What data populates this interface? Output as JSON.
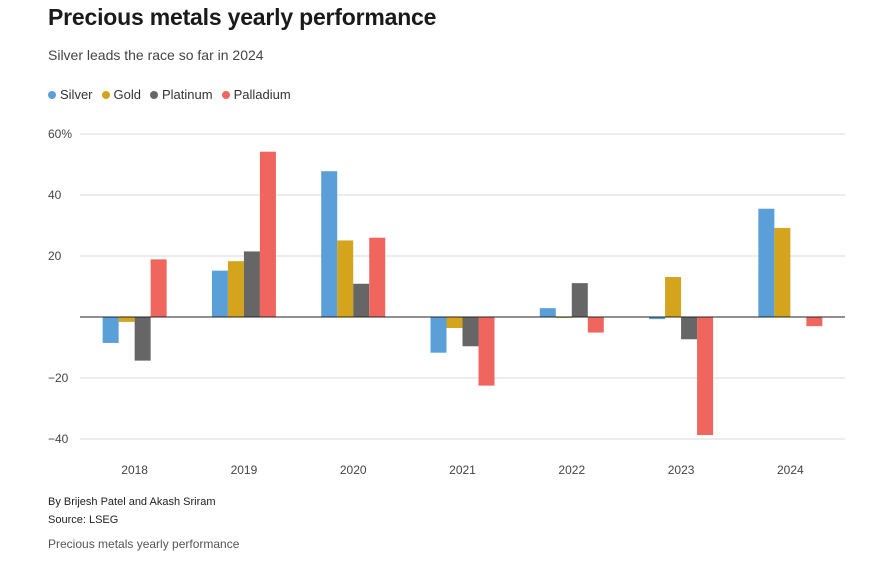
{
  "header": {
    "title": "Precious metals yearly performance",
    "subtitle": "Silver leads the race so far in 2024"
  },
  "colors": {
    "silver": "#5b9fd8",
    "gold": "#d4a41c",
    "platinum": "#666666",
    "palladium": "#f0665f",
    "grid": "#d8d8d8",
    "zero_line": "#222222"
  },
  "chart_data": {
    "type": "bar",
    "title": "Precious metals yearly performance",
    "subtitle": "Silver leads the race so far in 2024",
    "xlabel": "",
    "ylabel": "",
    "ylim": [
      -45,
      60
    ],
    "yticks": [
      60,
      40,
      20,
      0,
      -20,
      -40
    ],
    "ytick_labels": [
      "60%",
      "40",
      "20",
      "",
      "−20",
      "−40"
    ],
    "grid": true,
    "legend_position": "top-left",
    "categories": [
      "2018",
      "2019",
      "2020",
      "2021",
      "2022",
      "2023",
      "2024"
    ],
    "series": [
      {
        "name": "Silver",
        "color": "#5b9fd8",
        "values": [
          -8.5,
          15.2,
          47.8,
          -11.7,
          2.9,
          -0.7,
          35.5
        ]
      },
      {
        "name": "Gold",
        "color": "#d4a41c",
        "values": [
          -1.6,
          18.3,
          25.1,
          -3.6,
          -0.3,
          13.1,
          29.2
        ]
      },
      {
        "name": "Platinum",
        "color": "#666666",
        "values": [
          -14.3,
          21.5,
          10.9,
          -9.6,
          11.1,
          -7.3,
          0.0
        ]
      },
      {
        "name": "Palladium",
        "color": "#f0665f",
        "values": [
          18.9,
          54.2,
          26.0,
          -22.5,
          -5.1,
          -38.7,
          -3.0
        ]
      }
    ]
  },
  "footer": {
    "byline": "By Brijesh Patel and Akash Sriram",
    "source": "Source: LSEG",
    "caption": "Precious metals yearly performance"
  }
}
